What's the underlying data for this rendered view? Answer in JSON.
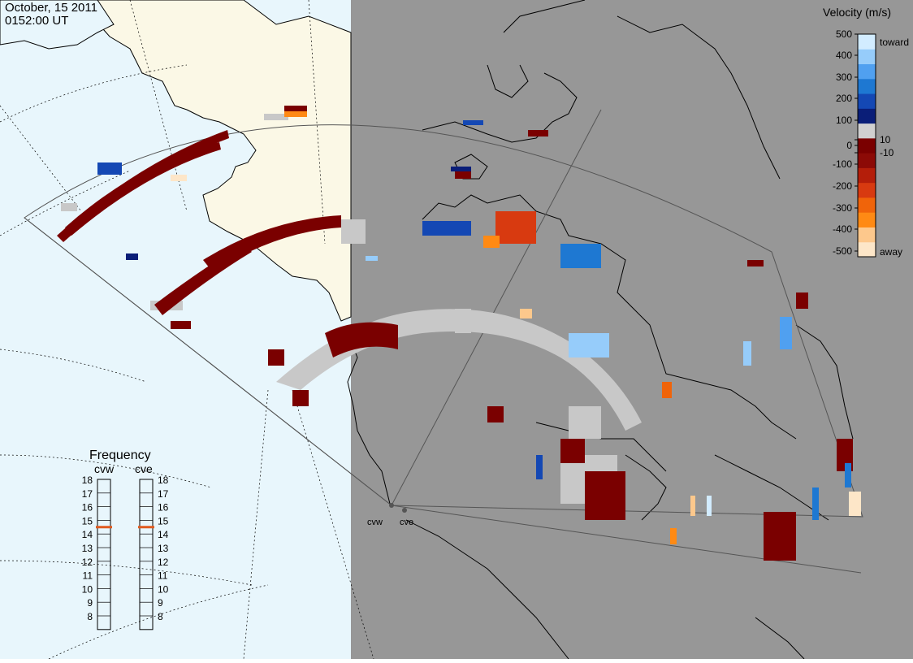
{
  "header": {
    "date": "October, 15 2011",
    "time": "0152:00 UT"
  },
  "colorbar": {
    "title": "Velocity (m/s)",
    "ticks": [
      "500",
      "400",
      "300",
      "200",
      "100",
      "10",
      "0",
      "-10",
      "-100",
      "-200",
      "-300",
      "-400",
      "-500"
    ],
    "toward_label": "toward",
    "away_label": "away",
    "colors": [
      "#fde6c8",
      "#fdc88c",
      "#ff8a14",
      "#f0640a",
      "#d83a10",
      "#b41e0a",
      "#8c0a06",
      "#7a0000",
      "#d0d0d0",
      "#0a1e78",
      "#1448b4",
      "#1e78d2",
      "#50a0f0",
      "#96ccfa",
      "#d2ecff"
    ]
  },
  "frequency": {
    "title": "Frequency",
    "radars": [
      "cvw",
      "cve"
    ],
    "scale": [
      "18",
      "17",
      "16",
      "15",
      "14",
      "13",
      "12",
      "11",
      "10",
      "9",
      "8"
    ],
    "cvw_value": 15,
    "cve_value": 15,
    "marker_color": "#e05a1e"
  },
  "radar_labels": [
    "cvw",
    "cve"
  ],
  "map_colors": {
    "sunlit": "#e8f6fc",
    "night": "#979797",
    "land": "#fbf8e6",
    "ground_scatter": "#c8c8c8",
    "negative": "#7a0000"
  }
}
